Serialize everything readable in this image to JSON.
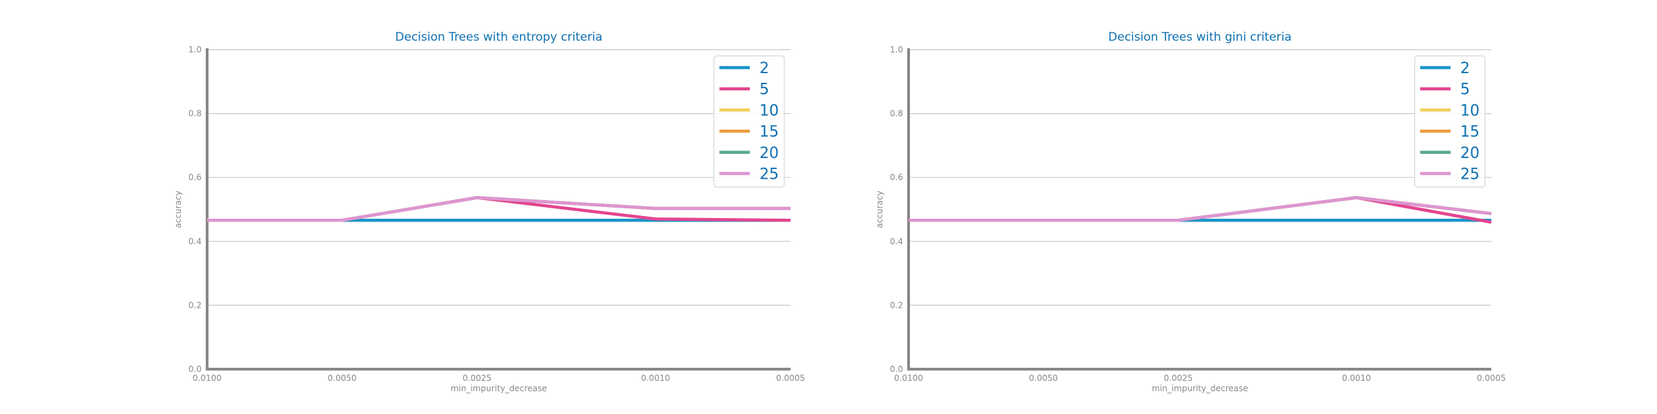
{
  "colors": {
    "title": "#0e6fb0",
    "axis": "#888888",
    "grid": "#c8c8c8",
    "series": [
      "#1b95c9",
      "#e4458f",
      "#f0d15c",
      "#ec9c3d",
      "#5aa88a",
      "#df94d2"
    ]
  },
  "chart_data": [
    {
      "type": "line",
      "title": "Decision Trees with entropy criteria",
      "xlabel": "min_impurity_decrease",
      "ylabel": "accuracy",
      "x_scale": "log-reversed",
      "x": [
        0.01,
        0.005,
        0.0025,
        0.001,
        0.0005
      ],
      "x_tick_labels": [
        "0.0100",
        "0.0050",
        "0.0025",
        "0.0010",
        "0.0005"
      ],
      "ylim": [
        0.0,
        1.0
      ],
      "y_ticks": [
        "0.0",
        "0.2",
        "0.4",
        "0.6",
        "0.8",
        "1.0"
      ],
      "grid": "horizontal",
      "legend_position": "top-right",
      "series": [
        {
          "name": "2",
          "values": [
            0.466,
            0.466,
            0.466,
            0.466,
            0.466
          ]
        },
        {
          "name": "5",
          "values": [
            0.466,
            0.466,
            0.537,
            0.47,
            0.466
          ]
        },
        {
          "name": "10",
          "values": [
            0.466,
            0.466,
            0.537,
            0.503,
            0.503
          ]
        },
        {
          "name": "15",
          "values": [
            0.466,
            0.466,
            0.537,
            0.503,
            0.503
          ]
        },
        {
          "name": "20",
          "values": [
            0.466,
            0.466,
            0.537,
            0.503,
            0.503
          ]
        },
        {
          "name": "25",
          "values": [
            0.466,
            0.466,
            0.537,
            0.503,
            0.503
          ]
        }
      ]
    },
    {
      "type": "line",
      "title": "Decision Trees with gini criteria",
      "xlabel": "min_impurity_decrease",
      "ylabel": "accuracy",
      "x_scale": "log-reversed",
      "x": [
        0.01,
        0.005,
        0.0025,
        0.001,
        0.0005
      ],
      "x_tick_labels": [
        "0.0100",
        "0.0050",
        "0.0025",
        "0.0010",
        "0.0005"
      ],
      "ylim": [
        0.0,
        1.0
      ],
      "y_ticks": [
        "0.0",
        "0.2",
        "0.4",
        "0.6",
        "0.8",
        "1.0"
      ],
      "grid": "horizontal",
      "legend_position": "top-right",
      "series": [
        {
          "name": "2",
          "values": [
            0.466,
            0.466,
            0.466,
            0.466,
            0.466
          ]
        },
        {
          "name": "5",
          "values": [
            0.466,
            0.466,
            0.466,
            0.537,
            0.46
          ]
        },
        {
          "name": "10",
          "values": [
            0.466,
            0.466,
            0.466,
            0.537,
            0.487
          ]
        },
        {
          "name": "15",
          "values": [
            0.466,
            0.466,
            0.466,
            0.537,
            0.487
          ]
        },
        {
          "name": "20",
          "values": [
            0.466,
            0.466,
            0.466,
            0.537,
            0.487
          ]
        },
        {
          "name": "25",
          "values": [
            0.466,
            0.466,
            0.466,
            0.537,
            0.487
          ]
        }
      ]
    }
  ]
}
